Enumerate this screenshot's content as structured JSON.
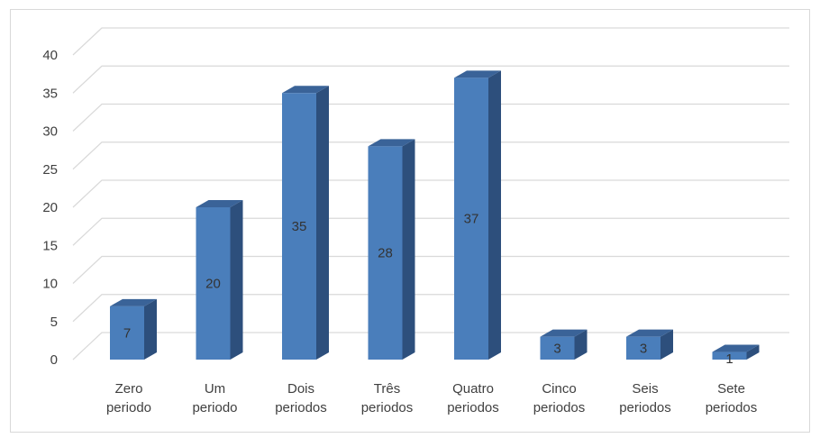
{
  "chart_data": {
    "type": "bar",
    "style": "3d-column",
    "categories": [
      [
        "Zero",
        "periodo"
      ],
      [
        "Um",
        "periodo"
      ],
      [
        "Dois",
        "periodos"
      ],
      [
        "Três",
        "periodos"
      ],
      [
        "Quatro",
        "periodos"
      ],
      [
        "Cinco",
        "periodos"
      ],
      [
        "Seis",
        "periodos"
      ],
      [
        "Sete",
        "periodos"
      ]
    ],
    "values": [
      7,
      20,
      35,
      28,
      37,
      3,
      3,
      1
    ],
    "yticks": [
      "0",
      "5",
      "10",
      "15",
      "20",
      "25",
      "30",
      "35",
      "40"
    ],
    "ylim": [
      0,
      40
    ],
    "title": "",
    "xlabel": "",
    "ylabel": "",
    "grid": true,
    "legend": "none",
    "data_labels": true,
    "colors": {
      "bar_front": "#4a7ebb",
      "bar_side": "#2d4f7c",
      "bar_top": "#3a6398",
      "gridline": "#d9d9d9",
      "text": "#404040"
    }
  }
}
